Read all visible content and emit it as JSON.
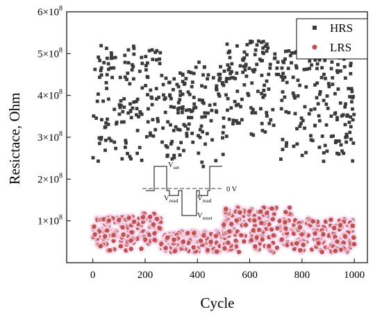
{
  "chart_data": {
    "type": "scatter",
    "xlabel": "Cycle",
    "ylabel": "Resictace, Ohm",
    "xlim": [
      -100,
      1050
    ],
    "ylim": [
      0,
      600000000
    ],
    "x_ticks": [
      0,
      200,
      400,
      600,
      800,
      1000
    ],
    "y_ticks": [
      {
        "value": 100000000,
        "mant": "1",
        "exp": "8"
      },
      {
        "value": 200000000,
        "mant": "2",
        "exp": "8"
      },
      {
        "value": 300000000,
        "mant": "3",
        "exp": "8"
      },
      {
        "value": 400000000,
        "mant": "4",
        "exp": "8"
      },
      {
        "value": 500000000,
        "mant": "5",
        "exp": "8"
      },
      {
        "value": 600000000,
        "mant": "6",
        "exp": "8"
      }
    ],
    "tick_times": "×10",
    "legend_position": "top-right",
    "series": [
      {
        "name": "HRS",
        "marker": "square",
        "color": "#3a3a3a",
        "segments": [
          {
            "x0": 0,
            "x1": 190,
            "lo": 240000000,
            "hi": 520000000
          },
          {
            "x0": 200,
            "x1": 260,
            "lo": 300000000,
            "hi": 515000000
          },
          {
            "x0": 260,
            "x1": 330,
            "lo": 240000000,
            "hi": 450000000
          },
          {
            "x0": 330,
            "x1": 500,
            "lo": 220000000,
            "hi": 480000000
          },
          {
            "x0": 500,
            "x1": 700,
            "lo": 300000000,
            "hi": 530000000
          },
          {
            "x0": 700,
            "x1": 1000,
            "lo": 240000000,
            "hi": 510000000
          }
        ],
        "count": 560
      },
      {
        "name": "LRS",
        "marker": "circle",
        "color": "#c0504d",
        "segments": [
          {
            "x0": 0,
            "x1": 190,
            "lo": 28000000,
            "hi": 110000000
          },
          {
            "x0": 190,
            "x1": 260,
            "lo": 45000000,
            "hi": 118000000
          },
          {
            "x0": 260,
            "x1": 500,
            "lo": 25000000,
            "hi": 75000000
          },
          {
            "x0": 500,
            "x1": 760,
            "lo": 25000000,
            "hi": 135000000
          },
          {
            "x0": 760,
            "x1": 1000,
            "lo": 25000000,
            "hi": 105000000
          }
        ],
        "count": 700
      }
    ],
    "inset": {
      "labels": {
        "set": {
          "main": "V",
          "sub": "set"
        },
        "read1": {
          "main": "V",
          "sub": "read"
        },
        "read2": {
          "main": "V",
          "sub": "read"
        },
        "reset": {
          "main": "V",
          "sub": "reset"
        }
      },
      "zero_label": "0 V"
    }
  }
}
